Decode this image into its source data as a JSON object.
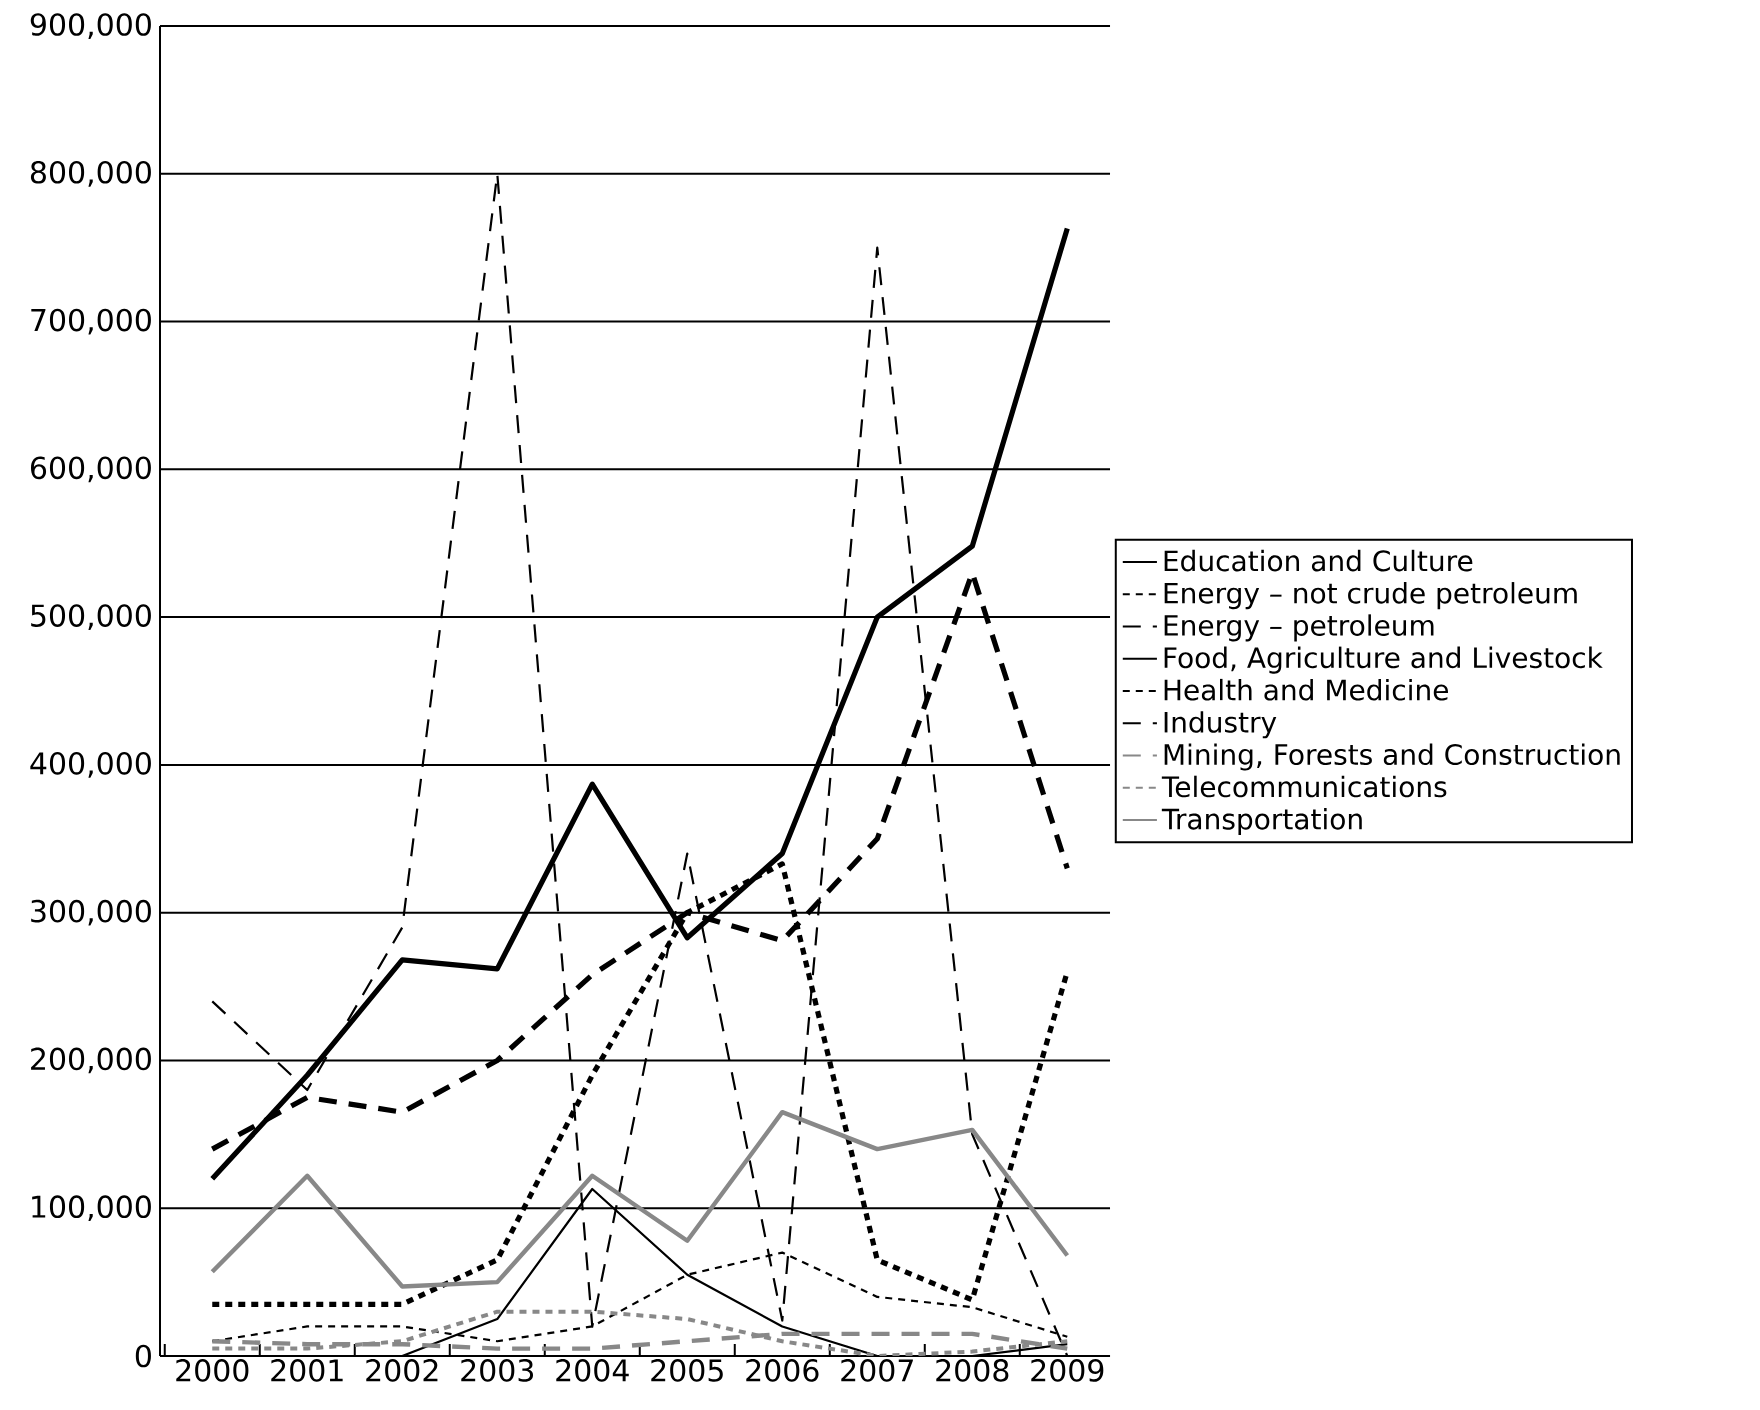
{
  "chart_data": {
    "type": "line",
    "categories": [
      "2000",
      "2001",
      "2002",
      "2003",
      "2004",
      "2005",
      "2006",
      "2007",
      "2008",
      "2009"
    ],
    "ylim": [
      0,
      900000
    ],
    "yticks": [
      0,
      {
        "value": 100000,
        "label": "100,000"
      },
      {
        "value": 200000,
        "label": "200,000"
      },
      {
        "value": 300000,
        "label": "300,000"
      },
      {
        "value": 400000,
        "label": "400,000"
      },
      {
        "value": 500000,
        "label": "500,000"
      },
      {
        "value": 600000,
        "label": "600,000"
      },
      {
        "value": 700000,
        "label": "700,000"
      },
      {
        "value": 800000,
        "label": "800,000"
      },
      {
        "value": 900000,
        "label": "900,000"
      }
    ],
    "grid": "y",
    "legend": "right",
    "marker": "none",
    "series": [
      {
        "name": "Education and Culture",
        "color": "#000000",
        "line_style": "solid",
        "values": [
          0,
          0,
          0,
          25000,
          113000,
          55000,
          20000,
          0,
          0,
          8000
        ]
      },
      {
        "name": "Energy – not crude petroleum",
        "color": "#000000",
        "line_style": "dotted",
        "values": [
          10000,
          20000,
          20000,
          10000,
          20000,
          55000,
          70000,
          40000,
          33000,
          13000
        ]
      },
      {
        "name": "Energy – petroleum",
        "color": "#000000",
        "line_style": "dashed",
        "values": [
          240000,
          180000,
          290000,
          800000,
          20000,
          340000,
          24000,
          750000,
          150000,
          0
        ]
      },
      {
        "name": "Food, Agriculture and Livestock",
        "color": "#000000",
        "line_style": "solid",
        "values": [
          120000,
          190000,
          268000,
          262000,
          387000,
          283000,
          340000,
          500000,
          548000,
          763000
        ]
      },
      {
        "name": "Health and Medicine",
        "color": "#000000",
        "line_style": "dotted",
        "values": [
          35000,
          35000,
          35000,
          65000,
          190000,
          300000,
          333000,
          65000,
          38000,
          260000
        ]
      },
      {
        "name": "Industry",
        "color": "#000000",
        "line_style": "dashed",
        "values": [
          140000,
          175000,
          165000,
          200000,
          258000,
          300000,
          281000,
          350000,
          530000,
          330000
        ]
      },
      {
        "name": "Mining, Forests and Construction",
        "color": "#888888",
        "line_style": "dashed",
        "values": [
          10000,
          8000,
          8000,
          5000,
          5000,
          10000,
          15000,
          15000,
          15000,
          5000
        ]
      },
      {
        "name": "Telecommunications",
        "color": "#888888",
        "line_style": "dotted",
        "values": [
          5000,
          5000,
          10000,
          30000,
          30000,
          25000,
          10000,
          0,
          3000,
          10000
        ]
      },
      {
        "name": "Transportation",
        "color": "#888888",
        "line_style": "solid",
        "values": [
          57000,
          122000,
          47000,
          50000,
          122000,
          78000,
          165000,
          140000,
          153000,
          68000
        ]
      }
    ]
  }
}
